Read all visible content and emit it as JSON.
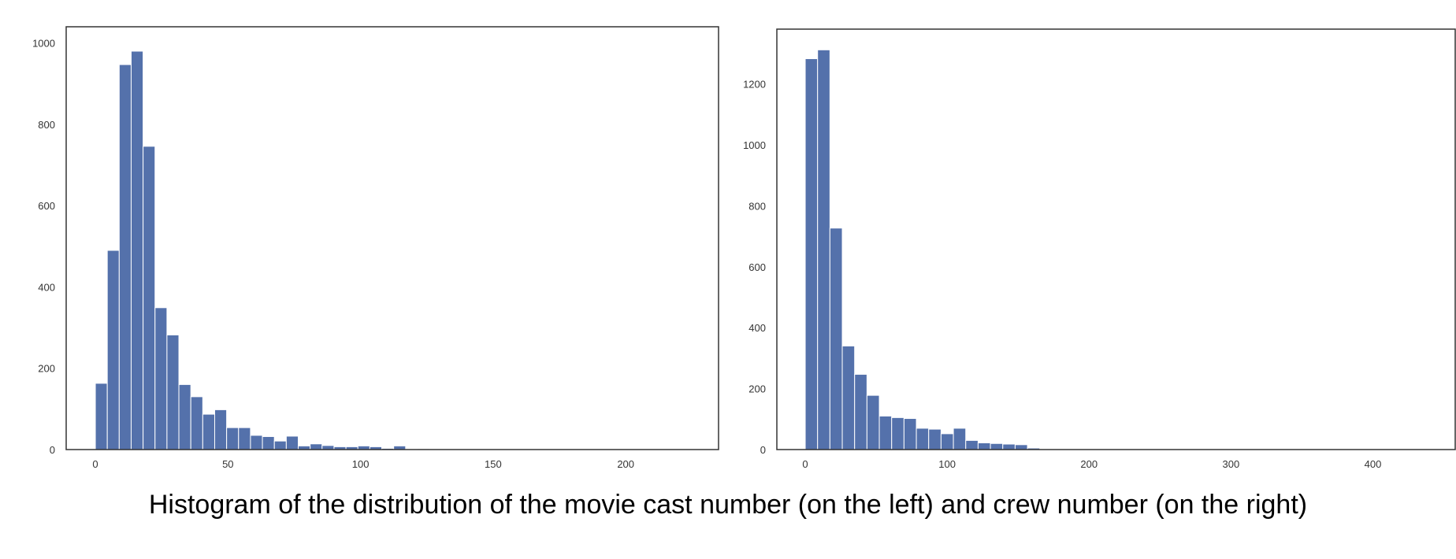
{
  "caption": "Histogram of the distribution of the movie cast number (on the left) and crew number (on the right)",
  "colors": {
    "bar": "#5471ab",
    "axis": "#333333",
    "background": "#ffffff"
  },
  "chart_data": [
    {
      "type": "bar",
      "title": "",
      "xlabel": "",
      "ylabel": "",
      "xlim": [
        -11,
        235
      ],
      "ylim": [
        0,
        1040
      ],
      "x_ticks": [
        0,
        50,
        100,
        150,
        200
      ],
      "y_ticks": [
        0,
        200,
        400,
        600,
        800,
        1000
      ],
      "grid": false,
      "bin_width": 4.5,
      "bins_start": [
        0,
        4.5,
        9,
        13.5,
        18,
        22.5,
        27,
        31.5,
        36,
        40.5,
        45,
        49.5,
        54,
        58.5,
        63,
        67.5,
        72,
        76.5,
        81,
        85.5,
        90,
        94.5,
        99,
        103.5,
        108,
        112.5,
        117,
        121.5,
        126
      ],
      "values": [
        163,
        490,
        947,
        980,
        746,
        349,
        282,
        160,
        130,
        87,
        98,
        54,
        54,
        35,
        32,
        21,
        33,
        9,
        14,
        10,
        7,
        7,
        9,
        7,
        3,
        9,
        1,
        2,
        1
      ]
    },
    {
      "type": "bar",
      "title": "",
      "xlabel": "",
      "ylabel": "",
      "xlim": [
        -20,
        458
      ],
      "ylim": [
        0,
        1380
      ],
      "x_ticks": [
        0,
        100,
        200,
        300,
        400
      ],
      "y_ticks": [
        0,
        200,
        400,
        600,
        800,
        1000,
        1200
      ],
      "grid": false,
      "bin_width": 8.7,
      "bins_start": [
        0,
        8.7,
        17.4,
        26.1,
        34.8,
        43.5,
        52.2,
        60.9,
        69.6,
        78.3,
        87,
        95.7,
        104.4,
        113.1,
        121.8,
        130.5,
        139.2,
        147.9,
        156.6
      ],
      "values": [
        1283,
        1312,
        727,
        340,
        247,
        178,
        110,
        105,
        102,
        70,
        67,
        52,
        70,
        30,
        22,
        20,
        18,
        16,
        5
      ]
    }
  ]
}
